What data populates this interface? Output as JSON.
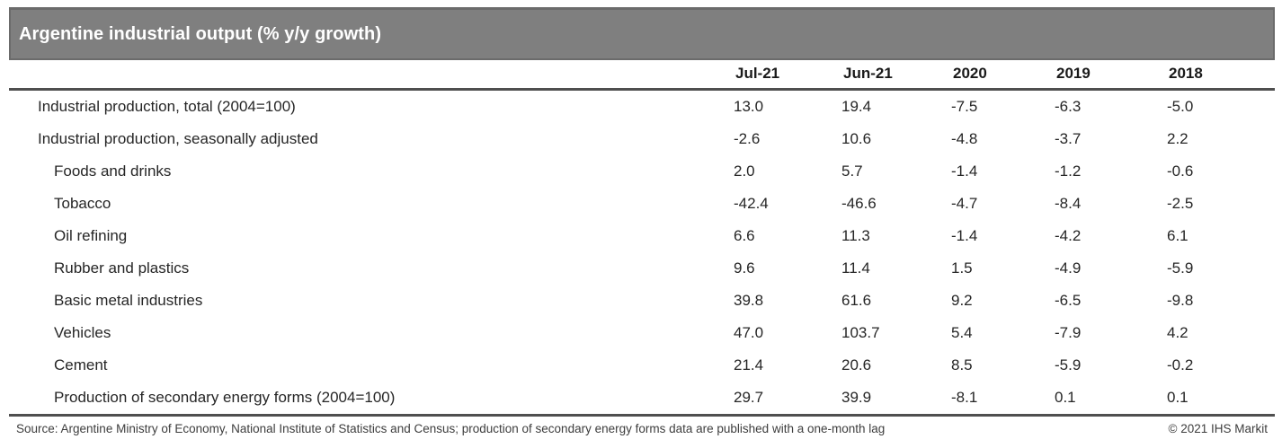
{
  "title": "Argentine industrial output (% y/y growth)",
  "colors": {
    "title-bar": "#7f7f7f",
    "title-bar-edge": "#6b6b6b",
    "title-text": "#ffffff",
    "rule": "#4f4f4f",
    "text": "#262626",
    "footer-text": "#3d3d3d"
  },
  "chart_data": {
    "type": "table",
    "title": "Argentine industrial output (% y/y growth)",
    "columns": [
      "Jul-21",
      "Jun-21",
      "2020",
      "2019",
      "2018"
    ],
    "rows": [
      {
        "label": "Industrial production, total (2004=100)",
        "indent": 0,
        "values": [
          "13.0",
          "19.4",
          "-7.5",
          "-6.3",
          "-5.0"
        ]
      },
      {
        "label": "Industrial production, seasonally adjusted",
        "indent": 0,
        "values": [
          "-2.6",
          "10.6",
          "-4.8",
          "-3.7",
          "2.2"
        ]
      },
      {
        "label": "Foods and drinks",
        "indent": 1,
        "values": [
          "2.0",
          "5.7",
          "-1.4",
          "-1.2",
          "-0.6"
        ]
      },
      {
        "label": "Tobacco",
        "indent": 1,
        "values": [
          "-42.4",
          "-46.6",
          "-4.7",
          "-8.4",
          "-2.5"
        ]
      },
      {
        "label": "Oil refining",
        "indent": 1,
        "values": [
          "6.6",
          "11.3",
          "-1.4",
          "-4.2",
          "6.1"
        ]
      },
      {
        "label": "Rubber and plastics",
        "indent": 1,
        "values": [
          "9.6",
          "11.4",
          "1.5",
          "-4.9",
          "-5.9"
        ]
      },
      {
        "label": "Basic metal industries",
        "indent": 1,
        "values": [
          "39.8",
          "61.6",
          "9.2",
          "-6.5",
          "-9.8"
        ]
      },
      {
        "label": "Vehicles",
        "indent": 1,
        "values": [
          "47.0",
          "103.7",
          "5.4",
          "-7.9",
          "4.2"
        ]
      },
      {
        "label": "Cement",
        "indent": 1,
        "values": [
          "21.4",
          "20.6",
          "8.5",
          "-5.9",
          "-0.2"
        ]
      },
      {
        "label": "Production of secondary energy forms (2004=100)",
        "indent": 1,
        "values": [
          "29.7",
          "39.9",
          "-8.1",
          "0.1",
          "0.1"
        ]
      }
    ]
  },
  "footer": {
    "source": "Source: Argentine Ministry of Economy, National Institute of Statistics and Census; production of secondary energy forms data are published with a one-month lag",
    "copyright": "© 2021 IHS Markit"
  }
}
